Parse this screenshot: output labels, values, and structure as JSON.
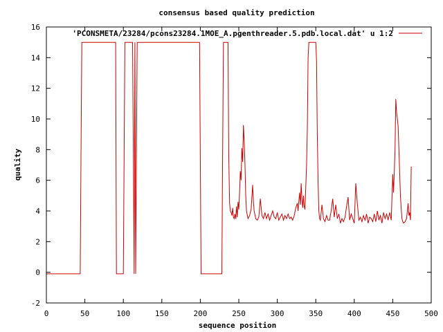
{
  "chart_data": {
    "type": "line",
    "title": "consensus based quality prediction",
    "xlabel": "sequence position",
    "ylabel": "quality",
    "xlim": [
      0,
      500
    ],
    "ylim": [
      -2,
      16
    ],
    "xticks": [
      "0",
      "50",
      "100",
      "150",
      "200",
      "250",
      "300",
      "350",
      "400",
      "450",
      "500"
    ],
    "yticks": [
      "-2",
      "0",
      "2",
      "4",
      "6",
      "8",
      "10",
      "12",
      "14",
      "16"
    ],
    "grid": false,
    "legend_position": "top-right",
    "series": [
      {
        "name": "'PCONSMETA/23284/pcons23284.1MOE_A.pgenthreader.5.pdb.local.dat' u 1:2",
        "color": "#cc0000",
        "x": [
          0,
          44,
          45,
          46,
          90,
          91,
          100,
          101,
          102,
          103,
          104,
          105,
          112,
          113,
          114,
          115,
          116,
          117,
          118,
          119,
          120,
          121,
          122,
          123,
          199,
          200,
          201,
          228,
          229,
          230,
          231,
          236,
          237,
          238,
          239,
          240,
          241,
          242,
          243,
          244,
          245,
          246,
          247,
          248,
          249,
          250,
          251,
          252,
          253,
          254,
          255,
          256,
          257,
          258,
          259,
          260,
          262,
          264,
          266,
          268,
          269,
          270,
          272,
          274,
          276,
          278,
          280,
          282,
          284,
          286,
          288,
          290,
          292,
          294,
          296,
          298,
          300,
          302,
          304,
          306,
          308,
          310,
          312,
          314,
          316,
          318,
          320,
          322,
          324,
          326,
          327,
          328,
          329,
          330,
          331,
          332,
          333,
          334,
          335,
          336,
          337,
          338,
          339,
          340,
          341,
          342,
          343,
          344,
          345,
          346,
          347,
          348,
          349,
          350,
          351,
          352,
          353,
          354,
          355,
          356,
          358,
          360,
          362,
          364,
          366,
          368,
          370,
          372,
          374,
          376,
          378,
          380,
          382,
          384,
          386,
          388,
          390,
          392,
          394,
          396,
          398,
          400,
          402,
          404,
          406,
          408,
          410,
          412,
          414,
          416,
          418,
          420,
          422,
          424,
          426,
          428,
          430,
          432,
          434,
          436,
          438,
          440,
          442,
          444,
          446,
          448,
          450,
          451,
          452,
          453,
          454,
          455,
          456,
          457,
          458,
          459,
          460,
          461,
          462,
          463,
          464,
          466,
          468,
          470,
          471,
          472,
          473,
          474
        ],
        "values": [
          -0.1,
          -0.1,
          7.5,
          15,
          15,
          -0.1,
          -0.1,
          7.5,
          15,
          15,
          15,
          15,
          15,
          7.5,
          -0.1,
          15,
          -0.1,
          7.5,
          15,
          15,
          15,
          15,
          15,
          15,
          15,
          7.5,
          -0.1,
          -0.1,
          7.5,
          15,
          15,
          15,
          7.5,
          4.5,
          4.0,
          3.9,
          3.7,
          4.2,
          3.6,
          3.5,
          3.8,
          3.5,
          4.3,
          3.6,
          4.6,
          4.1,
          5.2,
          6.6,
          6.0,
          8.1,
          7.2,
          9.6,
          8.5,
          7.1,
          5.0,
          4.0,
          3.5,
          3.7,
          4.1,
          5.7,
          4.6,
          4.0,
          3.5,
          3.4,
          3.6,
          4.8,
          3.7,
          3.5,
          3.9,
          3.5,
          3.8,
          3.4,
          3.7,
          4.0,
          3.6,
          3.5,
          3.9,
          3.4,
          3.6,
          3.8,
          3.4,
          3.7,
          3.5,
          3.8,
          3.5,
          3.6,
          3.4,
          3.7,
          4.2,
          4.5,
          4.0,
          4.6,
          5.2,
          4.4,
          5.8,
          4.8,
          4.2,
          5.0,
          4.3,
          4.1,
          5.5,
          7.0,
          9.3,
          14.0,
          15,
          15,
          15,
          15,
          15,
          15,
          15,
          15,
          15,
          15,
          13.8,
          9.0,
          6.0,
          4.0,
          3.5,
          3.4,
          4.4,
          3.5,
          3.3,
          3.7,
          3.4,
          3.4,
          4.0,
          4.8,
          3.6,
          4.4,
          3.5,
          3.8,
          3.2,
          3.5,
          3.3,
          3.6,
          4.3,
          4.9,
          3.4,
          3.8,
          3.5,
          3.2,
          5.8,
          4.5,
          3.4,
          3.6,
          3.3,
          3.7,
          3.4,
          3.8,
          3.2,
          3.6,
          3.5,
          3.3,
          3.8,
          3.3,
          4.0,
          3.4,
          3.7,
          3.2,
          3.9,
          3.5,
          3.8,
          3.4,
          3.9,
          3.4,
          6.4,
          5.2,
          6.5,
          8.0,
          11.3,
          10.4,
          10.0,
          9.5,
          8.0,
          6.5,
          5.0,
          4.2,
          3.5,
          3.3,
          3.2,
          3.3,
          3.5,
          4.5,
          3.7,
          3.9,
          3.4,
          6.9
        ]
      }
    ]
  }
}
